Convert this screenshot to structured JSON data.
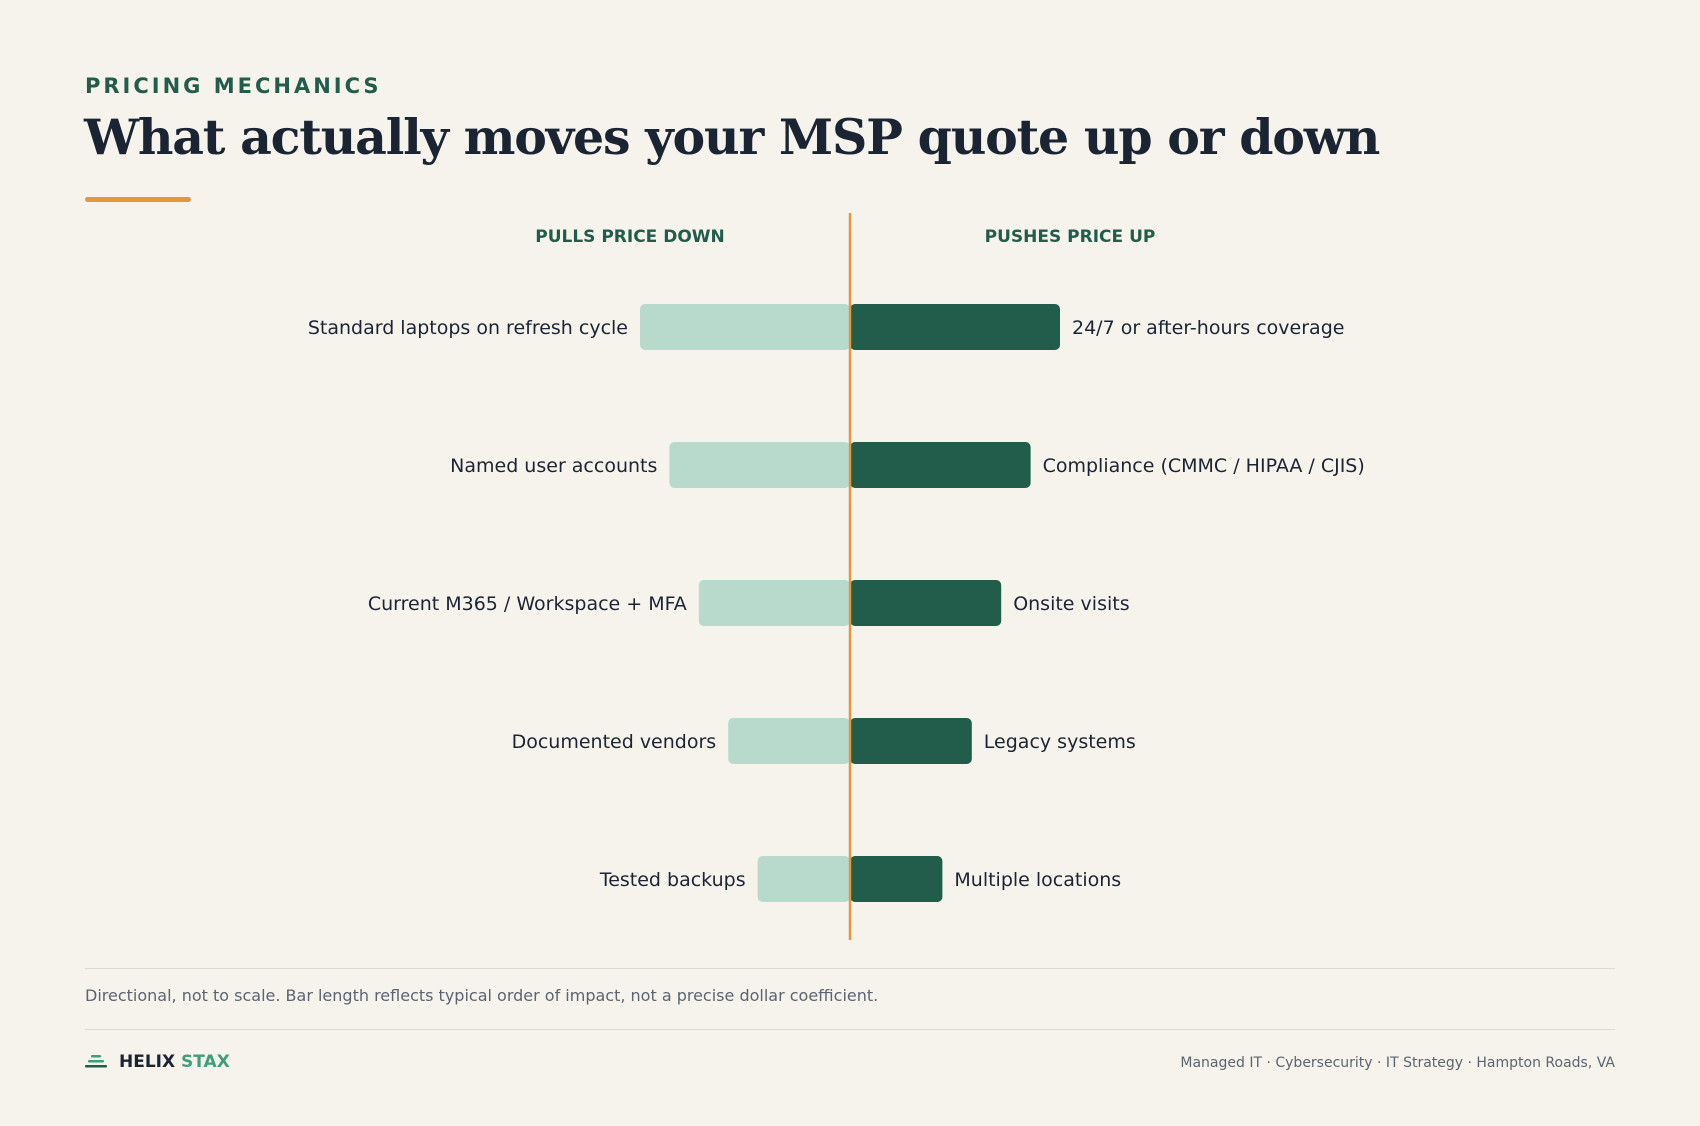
{
  "header": {
    "eyebrow": "PRICING MECHANICS",
    "title": "What actually moves your MSP quote up or down"
  },
  "chart_data": {
    "type": "bar",
    "orientation": "diverging-horizontal",
    "scale_note": "directional, not to scale",
    "left_header": "PULLS PRICE DOWN",
    "right_header": "PUSHES PRICE UP",
    "left": {
      "labels": [
        "Standard laptops on refresh cycle",
        "Named user accounts",
        "Current M365 / Workspace + MFA",
        "Documented vendors",
        "Tested backups"
      ],
      "values": [
        5,
        4.3,
        3.6,
        2.9,
        2.2
      ]
    },
    "right": {
      "labels": [
        "24/7 or after-hours coverage",
        "Compliance (CMMC / HIPAA / CJIS)",
        "Onsite visits",
        "Legacy systems",
        "Multiple locations"
      ],
      "values": [
        5,
        4.3,
        3.6,
        2.9,
        2.2
      ]
    },
    "colors": {
      "down": "#b8dacd",
      "up": "#225c4a",
      "axis": "#e4973f",
      "header": "#225c4a",
      "label": "#1b2433"
    }
  },
  "footer": {
    "note": "Directional, not to scale. Bar length reflects typical order of impact, not a precise dollar coefficient.",
    "brand_part1": "HELIX",
    "brand_part2": "STAX",
    "brand_icon": "stacked-layers-icon",
    "tagline": "Managed IT · Cybersecurity · IT Strategy · Hampton Roads, VA"
  }
}
